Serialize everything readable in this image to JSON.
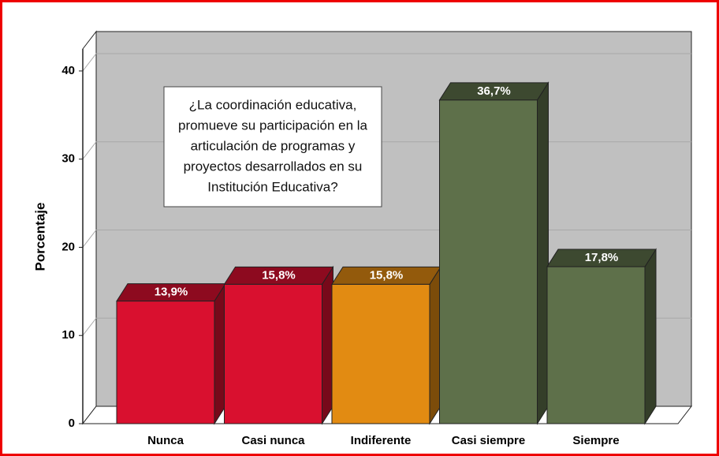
{
  "chart_data": {
    "type": "bar3d",
    "annotation_lines": [
      "¿La coordinación educativa,",
      "promueve su participación en la",
      "articulación de programas y",
      "proyectos desarrollados en su",
      "Institución Educativa?"
    ],
    "y_label": "Porcentaje",
    "categories": [
      "Nunca",
      "Casi nunca",
      "Indiferente",
      "Casi siempre",
      "Siempre"
    ],
    "values": [
      13.9,
      15.8,
      15.8,
      36.7,
      17.8
    ],
    "value_labels": [
      "13,9%",
      "15,8%",
      "15,8%",
      "36,7%",
      "17,8%"
    ],
    "colors": [
      "#d9102f",
      "#d9102f",
      "#e28b12",
      "#5e704a",
      "#5e704a"
    ],
    "ylim": [
      0,
      42.5
    ],
    "yticks": [
      0,
      10,
      20,
      30,
      40
    ],
    "grid": true
  }
}
